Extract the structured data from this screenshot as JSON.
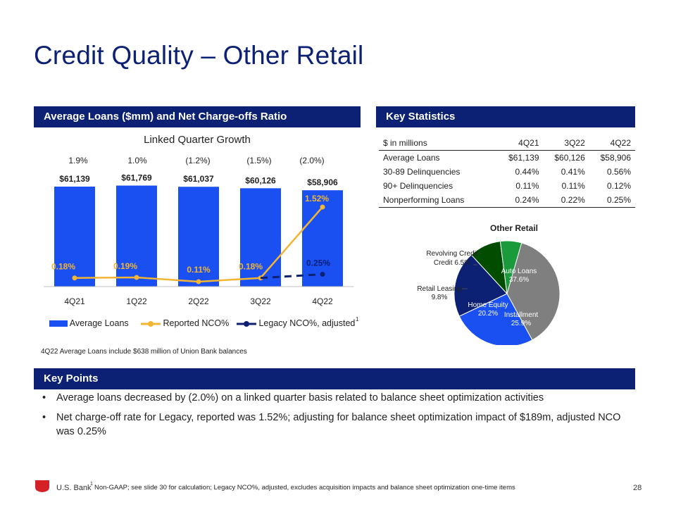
{
  "page": {
    "title": "Credit Quality – Other Retail",
    "page_number": "28",
    "brand": "U.S. Bank",
    "footnote_marker": "1",
    "footnote": "Non-GAAP; see slide 30 for calculation; Legacy NCO%, adjusted, excludes acquisition impacts and balance sheet optimization one-time items"
  },
  "left_panel": {
    "header": "Average Loans ($mm) and Net Charge-offs Ratio",
    "chart_subtitle": "Linked Quarter Growth",
    "growth_labels": [
      "1.9%",
      "1.0%",
      "(1.2%)",
      "(1.5%)",
      "(2.0%)"
    ],
    "legend_marker": "1",
    "note": "4Q22 Average Loans include $638 million of Union Bank balances"
  },
  "chart_data": [
    {
      "type": "bar",
      "categories": [
        "4Q21",
        "1Q22",
        "2Q22",
        "3Q22",
        "4Q22"
      ],
      "series": [
        {
          "name": "Average Loans",
          "kind": "bar",
          "values": [
            61139,
            61769,
            61037,
            60126,
            58906
          ],
          "labels": [
            "$61,139",
            "$61,769",
            "$61,037",
            "$60,126",
            "$58,906"
          ],
          "color": "#1a4ff2"
        },
        {
          "name": "Reported NCO%",
          "kind": "line",
          "values": [
            0.18,
            0.19,
            0.11,
            0.18,
            1.52
          ],
          "labels": [
            "0.18%",
            "0.19%",
            "0.11%",
            "0.18%",
            "1.52%"
          ],
          "color": "#f2b534"
        },
        {
          "name": "Legacy NCO%, adjusted",
          "kind": "dashed-line",
          "x": [
            "3Q22",
            "4Q22"
          ],
          "values": [
            0.18,
            0.25
          ],
          "labels": [
            "0.25%"
          ],
          "color": "#0c2074"
        }
      ],
      "legend_position": "bottom",
      "grid": false
    },
    {
      "type": "pie",
      "title": "Other Retail",
      "slices": [
        {
          "label": "Auto Loans",
          "value": 37.6,
          "display": "37.6%",
          "color": "#7f7f7f"
        },
        {
          "label": "Installment",
          "value": 25.9,
          "display": "25.9%",
          "color": "#1a4ff2"
        },
        {
          "label": "Home Equity",
          "value": 20.2,
          "display": "20.2%",
          "color": "#0c2074"
        },
        {
          "label": "Retail Leasing",
          "value": 9.8,
          "display": "9.8%",
          "color": "#004d00"
        },
        {
          "label": "Revolving Credit",
          "value": 6.5,
          "display": "6.5%",
          "color": "#1a9a3a"
        }
      ]
    }
  ],
  "key_statistics": {
    "header": "Key Statistics",
    "columns": [
      "$ in millions",
      "4Q21",
      "3Q22",
      "4Q22"
    ],
    "rows": [
      [
        "Average Loans",
        "$61,139",
        "$60,126",
        "$58,906"
      ],
      [
        "30-89 Delinquencies",
        "0.44%",
        "0.41%",
        "0.56%"
      ],
      [
        "90+ Delinquencies",
        "0.11%",
        "0.11%",
        "0.12%"
      ],
      [
        "Nonperforming Loans",
        "0.24%",
        "0.22%",
        "0.25%"
      ]
    ]
  },
  "key_points": {
    "header": "Key Points",
    "bullets": [
      "Average loans decreased by (2.0%) on a linked quarter basis related to balance sheet optimization activities",
      "Net charge-off rate for Legacy, reported was 1.52%; adjusting for balance sheet optimization impact of $189m, adjusted NCO was 0.25%"
    ]
  }
}
